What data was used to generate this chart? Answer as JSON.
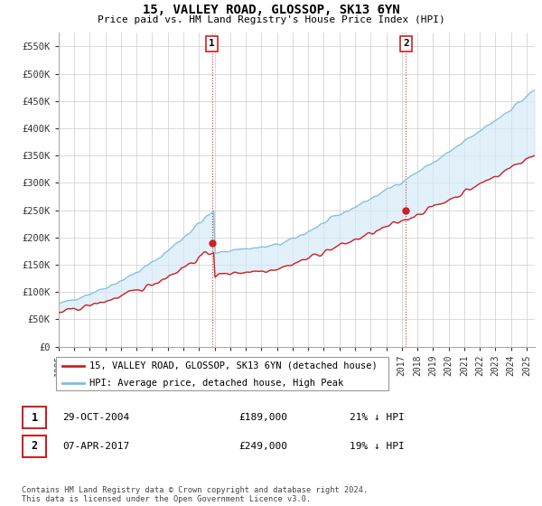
{
  "title": "15, VALLEY ROAD, GLOSSOP, SK13 6YN",
  "subtitle": "Price paid vs. HM Land Registry's House Price Index (HPI)",
  "ylabel_ticks": [
    "£0",
    "£50K",
    "£100K",
    "£150K",
    "£200K",
    "£250K",
    "£300K",
    "£350K",
    "£400K",
    "£450K",
    "£500K",
    "£550K"
  ],
  "ytick_values": [
    0,
    50000,
    100000,
    150000,
    200000,
    250000,
    300000,
    350000,
    400000,
    450000,
    500000,
    550000
  ],
  "ylim": [
    0,
    575000
  ],
  "xlim_start": 1995.0,
  "xlim_end": 2025.5,
  "marker1_x": 2004.83,
  "marker1_y": 189000,
  "marker2_x": 2017.27,
  "marker2_y": 249000,
  "legend_entry1": "15, VALLEY ROAD, GLOSSOP, SK13 6YN (detached house)",
  "legend_entry2": "HPI: Average price, detached house, High Peak",
  "footer": "Contains HM Land Registry data © Crown copyright and database right 2024.\nThis data is licensed under the Open Government Licence v3.0.",
  "hpi_color": "#7fbfdf",
  "hpi_fill_color": "#d6eaf8",
  "price_color": "#cc2222",
  "vline_color": "#cc2222",
  "grid_color": "#cccccc",
  "table_row1_date": "29-OCT-2004",
  "table_row1_price": "£189,000",
  "table_row1_note": "21% ↓ HPI",
  "table_row2_date": "07-APR-2017",
  "table_row2_price": "£249,000",
  "table_row2_note": "19% ↓ HPI"
}
